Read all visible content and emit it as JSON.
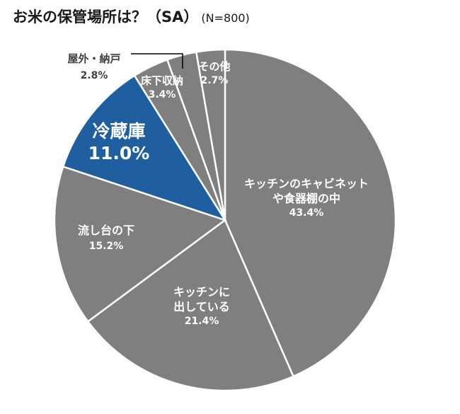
{
  "title": "お米の保管場所は？（SA）",
  "sample": "(N=800)",
  "colors": {
    "gray": "#7f7f7f",
    "highlight": "#1f5fa0",
    "border": "#ffffff"
  },
  "chart_data": {
    "type": "pie",
    "title": "お米の保管場所は？（SA）(N=800)",
    "start_angle": "12 o'clock, clockwise",
    "categories": [
      "キッチンのキャビネットや食器棚の中",
      "キッチンに出している",
      "流し台の下",
      "冷蔵庫",
      "床下収納",
      "屋外・納戸",
      "その他"
    ],
    "values": [
      43.4,
      21.4,
      15.2,
      11.0,
      3.4,
      2.8,
      2.7
    ],
    "unit": "%",
    "highlighted": "冷蔵庫"
  },
  "labels": {
    "cabinet": {
      "line1": "キッチンのキャビネット",
      "line2": "や食器棚の中",
      "pct": "43.4%"
    },
    "counter": {
      "line1": "キッチンに",
      "line2": "出している",
      "pct": "21.4%"
    },
    "sink": {
      "line1": "流し台の下",
      "pct": "15.2%"
    },
    "fridge": {
      "line1": "冷蔵庫",
      "pct": "11.0%"
    },
    "underfloor": {
      "line1": "床下収納",
      "pct": "3.4%"
    },
    "outdoor": {
      "line1": "屋外・納戸",
      "pct": "2.8%"
    },
    "other": {
      "line1": "その他",
      "pct": "2.7%"
    }
  }
}
